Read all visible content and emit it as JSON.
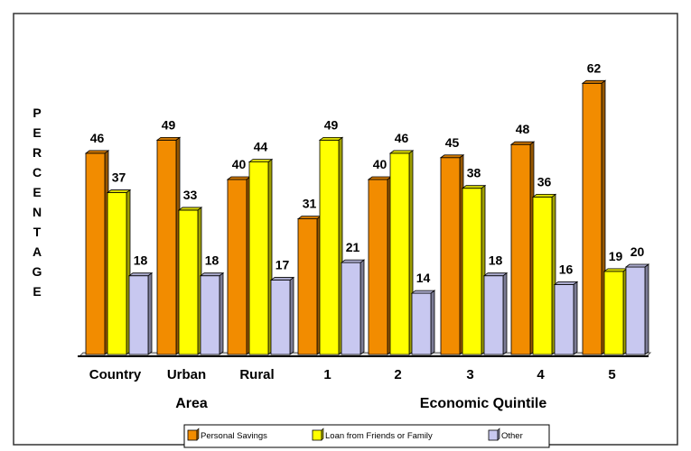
{
  "chart_data": {
    "type": "bar",
    "title": "",
    "xlabel": "",
    "ylabel": "PERCENTAGE",
    "ylim": [
      0,
      70
    ],
    "grid": false,
    "legend_position": "bottom",
    "categories": [
      "Country",
      "Urban",
      "Rural",
      "1",
      "2",
      "3",
      "4",
      "5"
    ],
    "category_groups": [
      {
        "label": "Area",
        "categories": [
          "Country",
          "Urban",
          "Rural"
        ]
      },
      {
        "label": "Economic Quintile",
        "categories": [
          "1",
          "2",
          "3",
          "4",
          "5"
        ]
      }
    ],
    "series": [
      {
        "name": "Personal Savings",
        "color": "#F28C00",
        "values": [
          46,
          49,
          40,
          31,
          40,
          45,
          48,
          62
        ]
      },
      {
        "name": "Loan from Friends or Family",
        "color": "#FFFF00",
        "values": [
          37,
          33,
          44,
          49,
          46,
          38,
          36,
          19
        ]
      },
      {
        "name": "Other",
        "color": "#C8C8F0",
        "values": [
          18,
          18,
          17,
          21,
          14,
          18,
          16,
          20
        ]
      }
    ]
  }
}
